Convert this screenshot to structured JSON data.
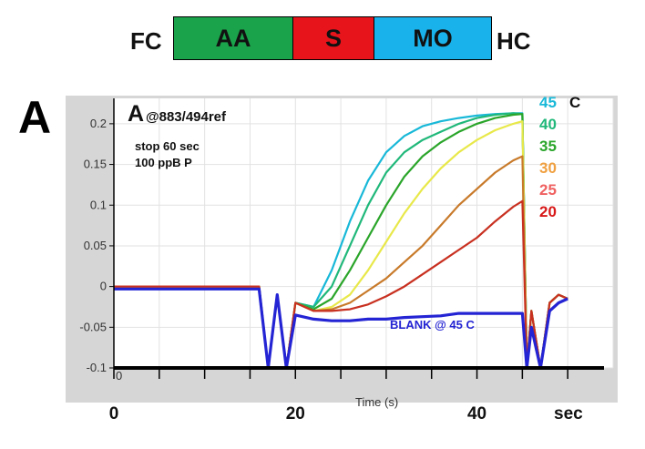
{
  "zones": {
    "left_label": "FC",
    "right_label": "HC",
    "segments": [
      {
        "label": "AA",
        "color": "#1aa34a"
      },
      {
        "label": "S",
        "color": "#e8141c"
      },
      {
        "label": "MO",
        "color": "#1ab2ea"
      }
    ]
  },
  "panel_letter": "A",
  "chart_data": {
    "type": "line",
    "title_letter": "A",
    "title": "@883/494ref",
    "notes": [
      "stop 60 sec",
      "100 ppB P"
    ],
    "xlabel": "Time (s)",
    "x_unit_label": "sec",
    "xlim": [
      0,
      55
    ],
    "ylim": [
      -0.1,
      0.22
    ],
    "x_ticks": [
      0,
      20,
      40
    ],
    "y_ticks": [
      -0.1,
      -0.05,
      0,
      0.05,
      0.1,
      0.15,
      0.2
    ],
    "y_tick_labels": [
      "-0.1",
      "-0.05",
      "0",
      "0.05",
      "0.1",
      "0.15",
      "0.2"
    ],
    "legend_unit": "C",
    "blank_label": "BLANK @ 45 C",
    "series": [
      {
        "name": "45",
        "color": "#18b8d8",
        "x": [
          0,
          16,
          17,
          18,
          19,
          20,
          22,
          24,
          26,
          28,
          30,
          32,
          34,
          36,
          38,
          40,
          42,
          44,
          45,
          45.5,
          46,
          47,
          48,
          49,
          50
        ],
        "y": [
          0,
          0,
          -0.1,
          -0.01,
          -0.1,
          -0.02,
          -0.025,
          0.02,
          0.08,
          0.13,
          0.165,
          0.185,
          0.197,
          0.203,
          0.207,
          0.21,
          0.212,
          0.213,
          0.213,
          -0.1,
          -0.03,
          -0.1,
          -0.02,
          -0.01,
          -0.015
        ]
      },
      {
        "name": "40",
        "color": "#20b87a",
        "x": [
          0,
          16,
          17,
          18,
          19,
          20,
          22,
          24,
          26,
          28,
          30,
          32,
          34,
          36,
          38,
          40,
          42,
          44,
          45,
          45.5,
          46,
          47,
          48,
          49,
          50
        ],
        "y": [
          0,
          0,
          -0.1,
          -0.01,
          -0.1,
          -0.02,
          -0.025,
          0.0,
          0.05,
          0.1,
          0.14,
          0.165,
          0.18,
          0.19,
          0.2,
          0.207,
          0.211,
          0.213,
          0.212,
          -0.1,
          -0.03,
          -0.1,
          -0.02,
          -0.01,
          -0.015
        ]
      },
      {
        "name": "35",
        "color": "#2aa52a",
        "x": [
          0,
          16,
          17,
          18,
          19,
          20,
          22,
          24,
          26,
          28,
          30,
          32,
          34,
          36,
          38,
          40,
          42,
          44,
          45,
          45.5,
          46,
          47,
          48,
          49,
          50
        ],
        "y": [
          0,
          0,
          -0.1,
          -0.01,
          -0.1,
          -0.02,
          -0.028,
          -0.015,
          0.02,
          0.06,
          0.1,
          0.135,
          0.16,
          0.177,
          0.19,
          0.2,
          0.207,
          0.211,
          0.212,
          -0.1,
          -0.03,
          -0.1,
          -0.02,
          -0.01,
          -0.015
        ]
      },
      {
        "name": "30",
        "color": "#e8e84a",
        "x": [
          0,
          16,
          17,
          18,
          19,
          20,
          22,
          24,
          26,
          28,
          30,
          32,
          34,
          36,
          38,
          40,
          42,
          44,
          45,
          45.5,
          46,
          47,
          48,
          49,
          50
        ],
        "y": [
          0,
          0,
          -0.1,
          -0.01,
          -0.1,
          -0.02,
          -0.03,
          -0.025,
          -0.01,
          0.02,
          0.055,
          0.09,
          0.12,
          0.145,
          0.165,
          0.18,
          0.192,
          0.2,
          0.203,
          -0.1,
          -0.03,
          -0.1,
          -0.02,
          -0.01,
          -0.015
        ]
      },
      {
        "name": "25",
        "color": "#c87a2a",
        "x": [
          0,
          16,
          17,
          18,
          19,
          20,
          22,
          24,
          26,
          28,
          30,
          32,
          34,
          36,
          38,
          40,
          42,
          44,
          45,
          45.5,
          46,
          47,
          48,
          49,
          50
        ],
        "y": [
          0,
          0,
          -0.1,
          -0.01,
          -0.1,
          -0.02,
          -0.03,
          -0.028,
          -0.02,
          -0.005,
          0.01,
          0.03,
          0.05,
          0.075,
          0.1,
          0.12,
          0.14,
          0.155,
          0.16,
          -0.1,
          -0.03,
          -0.1,
          -0.02,
          -0.01,
          -0.015
        ]
      },
      {
        "name": "20",
        "color": "#c83020",
        "x": [
          0,
          16,
          17,
          18,
          19,
          20,
          22,
          24,
          26,
          28,
          30,
          32,
          34,
          36,
          38,
          40,
          42,
          44,
          45,
          45.5,
          46,
          47,
          48,
          49,
          50
        ],
        "y": [
          0,
          0,
          -0.1,
          -0.01,
          -0.1,
          -0.02,
          -0.03,
          -0.03,
          -0.028,
          -0.022,
          -0.012,
          0.0,
          0.015,
          0.03,
          0.045,
          0.06,
          0.08,
          0.098,
          0.105,
          -0.1,
          -0.03,
          -0.1,
          -0.02,
          -0.01,
          -0.015
        ]
      },
      {
        "name": "BLANK @ 45 C",
        "color": "#2424d4",
        "x": [
          0,
          16,
          17,
          18,
          19,
          20,
          22,
          24,
          26,
          28,
          30,
          32,
          34,
          36,
          38,
          40,
          42,
          44,
          45,
          45.5,
          46,
          47,
          48,
          49,
          50
        ],
        "y": [
          -0.003,
          -0.003,
          -0.1,
          -0.01,
          -0.1,
          -0.035,
          -0.04,
          -0.042,
          -0.042,
          -0.04,
          -0.04,
          -0.038,
          -0.037,
          -0.036,
          -0.033,
          -0.033,
          -0.033,
          -0.033,
          -0.033,
          -0.1,
          -0.05,
          -0.1,
          -0.03,
          -0.02,
          -0.015
        ]
      }
    ],
    "legend_colors": [
      "#18b8d8",
      "#20b87a",
      "#2aa52a",
      "#f0a040",
      "#f06060",
      "#d81818"
    ]
  }
}
